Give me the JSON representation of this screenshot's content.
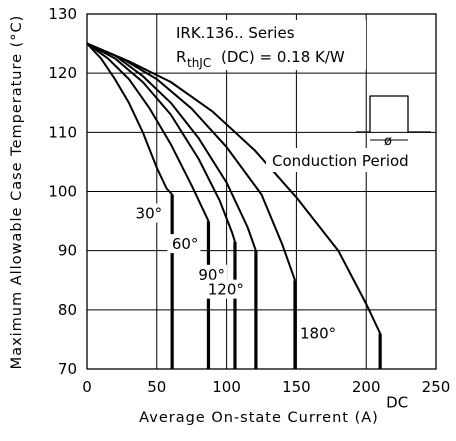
{
  "chart_data": {
    "type": "line",
    "title": "IRK.136.. Series",
    "subtitle_parts": [
      "R",
      "thJC",
      "(DC) = 0.18 K/W"
    ],
    "xlabel": "Average On-state Current (A)",
    "ylabel": "Maximum Allowable Case Temperature (°C)",
    "xlim": [
      0,
      250
    ],
    "ylim": [
      70,
      130
    ],
    "xticks": [
      0,
      50,
      100,
      150,
      200,
      250
    ],
    "yticks": [
      70,
      80,
      90,
      100,
      110,
      120,
      130
    ],
    "grid": true,
    "inset_label": "Conduction Period",
    "inset_symbol": "ø",
    "series": [
      {
        "name": "30°",
        "x": [
          0,
          10,
          20,
          30,
          40,
          50,
          57,
          61
        ],
        "y": [
          125,
          122.5,
          119,
          115,
          110,
          104,
          100.5,
          99.5
        ],
        "drop_to": 70
      },
      {
        "name": "60°",
        "x": [
          0,
          15,
          30,
          45,
          60,
          75,
          85,
          87
        ],
        "y": [
          125,
          122.5,
          119,
          114,
          108,
          101,
          96,
          95
        ],
        "drop_to": 70
      },
      {
        "name": "90°",
        "x": [
          0,
          20,
          40,
          60,
          80,
          95,
          104,
          106
        ],
        "y": [
          125,
          122.5,
          118.5,
          113,
          105.5,
          98.5,
          93,
          91.5
        ],
        "drop_to": 70
      },
      {
        "name": "120°",
        "x": [
          0,
          20,
          40,
          60,
          80,
          100,
          115,
          121
        ],
        "y": [
          125,
          123,
          119.5,
          115,
          109,
          101.5,
          94,
          90
        ],
        "drop_to": 70
      },
      {
        "name": "180°",
        "x": [
          0,
          25,
          50,
          75,
          100,
          125,
          140,
          149
        ],
        "y": [
          125,
          122.5,
          119,
          114,
          107.5,
          99.5,
          91,
          85
        ],
        "drop_to": 70
      },
      {
        "name": "DC",
        "x": [
          0,
          30,
          60,
          90,
          120,
          150,
          180,
          200,
          210
        ],
        "y": [
          125,
          122,
          118.5,
          113.5,
          107,
          99,
          90,
          81,
          76
        ],
        "drop_to": 70
      }
    ]
  }
}
